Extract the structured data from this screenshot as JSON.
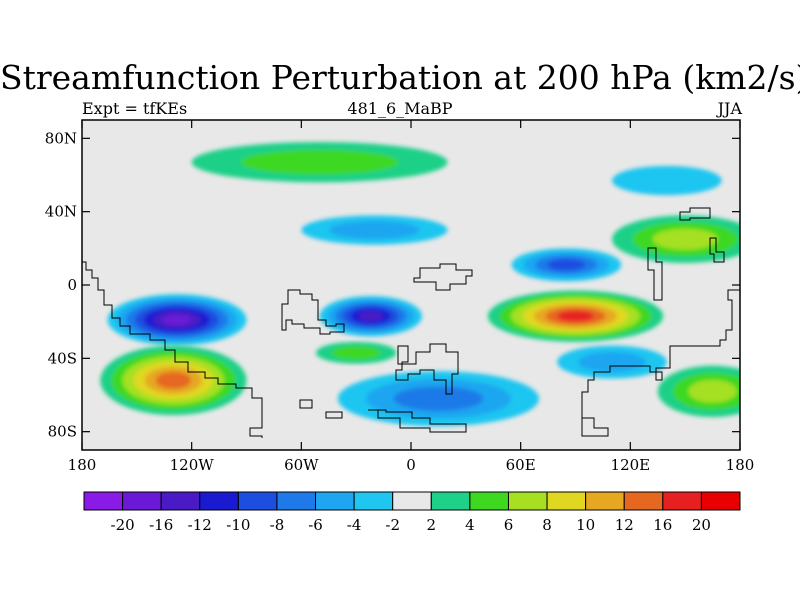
{
  "title": "Streamfunction Perturbation at 200 hPa (km2/s)",
  "subtitle_left": "Expt = tfKEs",
  "subtitle_center": "481_6_MaBP",
  "subtitle_right": "JJA",
  "map": {
    "projection": "cylindrical-equidistant",
    "lon_range": [
      -180,
      180
    ],
    "lat_range": [
      -90,
      90
    ],
    "x_ticks": [
      {
        "value": -180,
        "label": "180"
      },
      {
        "value": -120,
        "label": "120W"
      },
      {
        "value": -60,
        "label": "60W"
      },
      {
        "value": 0,
        "label": "0"
      },
      {
        "value": 60,
        "label": "60E"
      },
      {
        "value": 120,
        "label": "120E"
      },
      {
        "value": 180,
        "label": "180"
      }
    ],
    "y_ticks": [
      {
        "value": 80,
        "label": "80N"
      },
      {
        "value": 40,
        "label": "40N"
      },
      {
        "value": 0,
        "label": "0"
      },
      {
        "value": -40,
        "label": "40S"
      },
      {
        "value": -80,
        "label": "80S"
      }
    ],
    "background_color": "#e8e8e8",
    "coastline_color": "#000000"
  },
  "colorbar": {
    "labels": [
      "-20",
      "-16",
      "-12",
      "-10",
      "-8",
      "-6",
      "-4",
      "-2",
      "2",
      "4",
      "6",
      "8",
      "10",
      "12",
      "16",
      "20"
    ],
    "colors": [
      "#8a1ae6",
      "#6a1ad6",
      "#4a1ac6",
      "#1a1ad0",
      "#1e4ee0",
      "#1e7ae8",
      "#1ea6f0",
      "#1ec6f0",
      "#e8e8e8",
      "#1ed088",
      "#3ed820",
      "#a6e020",
      "#e0d820",
      "#e6a820",
      "#e66820",
      "#e62020",
      "#e80000"
    ]
  },
  "features": [
    {
      "name": "pacific-tropical-low",
      "lon": -128,
      "lat": -19,
      "value": -16,
      "rx": 38,
      "ry": 14
    },
    {
      "name": "atlantic-tropical-low",
      "lon": -22,
      "lat": -17,
      "value": -12,
      "rx": 28,
      "ry": 11
    },
    {
      "name": "asian-tropical-high",
      "lon": 90,
      "lat": -17,
      "value": 16,
      "rx": 48,
      "ry": 14
    },
    {
      "name": "south-pacific-high",
      "lon": -130,
      "lat": -52,
      "value": 12,
      "rx": 40,
      "ry": 19
    },
    {
      "name": "central-asia-low",
      "lon": 85,
      "lat": 11,
      "value": -8,
      "rx": 30,
      "ry": 9
    },
    {
      "name": "north-atlantic-low",
      "lon": -20,
      "lat": 30,
      "value": -4,
      "rx": 40,
      "ry": 8
    },
    {
      "name": "south-atlantic-low",
      "lon": 15,
      "lat": -62,
      "value": -6,
      "rx": 55,
      "ry": 15
    },
    {
      "name": "south-indian-low",
      "lon": 110,
      "lat": -42,
      "value": -4,
      "rx": 30,
      "ry": 9
    },
    {
      "name": "north-pacific-low",
      "lon": 140,
      "lat": 57,
      "value": -2,
      "rx": 30,
      "ry": 8
    },
    {
      "name": "polar-north-high",
      "lon": -50,
      "lat": 67,
      "value": 4,
      "rx": 70,
      "ry": 11
    },
    {
      "name": "north-pacific-high",
      "lon": 150,
      "lat": 25,
      "value": 6,
      "rx": 40,
      "ry": 13
    },
    {
      "name": "south-east-pacific-high",
      "lon": 165,
      "lat": -58,
      "value": 6,
      "rx": 30,
      "ry": 14
    },
    {
      "name": "south-atlantic-high",
      "lon": -30,
      "lat": -37,
      "value": 4,
      "rx": 22,
      "ry": 6
    }
  ]
}
